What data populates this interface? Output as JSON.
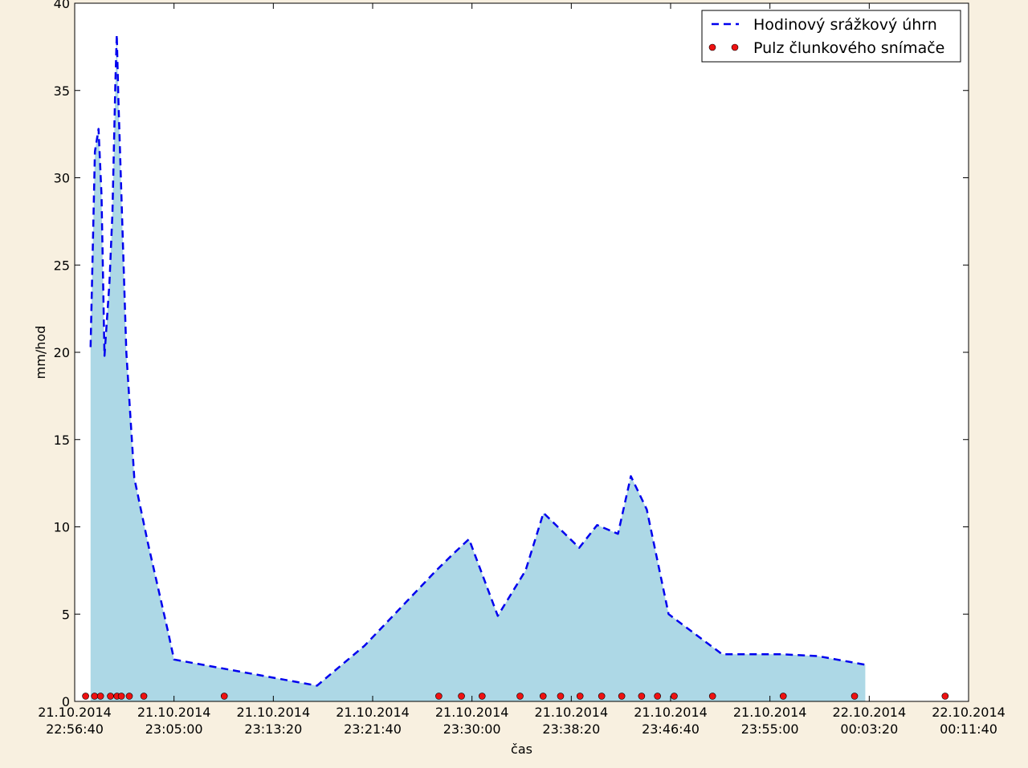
{
  "chart_data": {
    "type": "line",
    "title": "",
    "xlabel": "čas",
    "ylabel": "mm/hod",
    "ylim": [
      0,
      40
    ],
    "yticks": [
      0,
      5,
      10,
      15,
      20,
      25,
      30,
      35,
      40
    ],
    "xlim": [
      "2014-10-21T22:56:40",
      "2014-10-22T00:11:40"
    ],
    "xticks": [
      {
        "value": "2014-10-21T22:56:40",
        "date": "21.10.2014",
        "time": "22:56:40"
      },
      {
        "value": "2014-10-21T23:05:00",
        "date": "21.10.2014",
        "time": "23:05:00"
      },
      {
        "value": "2014-10-21T23:13:20",
        "date": "21.10.2014",
        "time": "23:13:20"
      },
      {
        "value": "2014-10-21T23:21:40",
        "date": "21.10.2014",
        "time": "23:21:40"
      },
      {
        "value": "2014-10-21T23:30:00",
        "date": "21.10.2014",
        "time": "23:30:00"
      },
      {
        "value": "2014-10-21T23:38:20",
        "date": "21.10.2014",
        "time": "23:38:20"
      },
      {
        "value": "2014-10-21T23:46:40",
        "date": "21.10.2014",
        "time": "23:46:40"
      },
      {
        "value": "2014-10-21T23:55:00",
        "date": "21.10.2014",
        "time": "23:55:00"
      },
      {
        "value": "2014-10-22T00:03:20",
        "date": "22.10.2014",
        "time": "00:03:20"
      },
      {
        "value": "2014-10-22T00:11:40",
        "date": "22.10.2014",
        "time": "00:11:40"
      }
    ],
    "grid": false,
    "legend_position": "top-right",
    "series": [
      {
        "name": "Hodinový srážkový úhrn",
        "style": "dashed-line-with-fill",
        "color": "#0000ee",
        "fill_color": "#add8e6",
        "points": [
          {
            "x": "2014-10-21T22:58:00",
            "y": 20.3
          },
          {
            "x": "2014-10-21T22:58:22",
            "y": 31.5
          },
          {
            "x": "2014-10-21T22:58:40",
            "y": 32.8
          },
          {
            "x": "2014-10-21T22:58:55",
            "y": 29.0
          },
          {
            "x": "2014-10-21T22:59:10",
            "y": 19.8
          },
          {
            "x": "2014-10-21T22:59:35",
            "y": 24.0
          },
          {
            "x": "2014-10-21T22:59:50",
            "y": 28.0
          },
          {
            "x": "2014-10-21T23:00:05",
            "y": 35.5
          },
          {
            "x": "2014-10-21T23:00:12",
            "y": 38.2
          },
          {
            "x": "2014-10-21T23:00:20",
            "y": 34.5
          },
          {
            "x": "2014-10-21T23:01:00",
            "y": 20.0
          },
          {
            "x": "2014-10-21T23:01:40",
            "y": 12.8
          },
          {
            "x": "2014-10-21T23:02:50",
            "y": 9.0
          },
          {
            "x": "2014-10-21T23:04:30",
            "y": 4.0
          },
          {
            "x": "2014-10-21T23:05:00",
            "y": 2.4
          },
          {
            "x": "2014-10-21T23:09:00",
            "y": 1.9
          },
          {
            "x": "2014-10-21T23:17:00",
            "y": 0.9
          },
          {
            "x": "2014-10-21T23:21:00",
            "y": 3.2
          },
          {
            "x": "2014-10-21T23:27:00",
            "y": 7.5
          },
          {
            "x": "2014-10-21T23:28:30",
            "y": 8.5
          },
          {
            "x": "2014-10-21T23:29:45",
            "y": 9.3
          },
          {
            "x": "2014-10-21T23:32:10",
            "y": 4.9
          },
          {
            "x": "2014-10-21T23:34:30",
            "y": 7.5
          },
          {
            "x": "2014-10-21T23:36:00",
            "y": 10.8
          },
          {
            "x": "2014-10-21T23:39:00",
            "y": 8.8
          },
          {
            "x": "2014-10-21T23:40:30",
            "y": 10.1
          },
          {
            "x": "2014-10-21T23:42:15",
            "y": 9.6
          },
          {
            "x": "2014-10-21T23:43:20",
            "y": 12.9
          },
          {
            "x": "2014-10-21T23:44:40",
            "y": 11.0
          },
          {
            "x": "2014-10-21T23:46:30",
            "y": 5.0
          },
          {
            "x": "2014-10-21T23:51:00",
            "y": 2.7
          },
          {
            "x": "2014-10-21T23:56:00",
            "y": 2.7
          },
          {
            "x": "2014-10-21T23:59:00",
            "y": 2.6
          },
          {
            "x": "2014-10-22T00:03:00",
            "y": 2.1
          }
        ]
      },
      {
        "name": "Pulz člunkového snímače",
        "style": "markers",
        "color": "#ee1111",
        "points": [
          {
            "x": "2014-10-21T22:57:35",
            "y": 0.3
          },
          {
            "x": "2014-10-21T22:58:20",
            "y": 0.3
          },
          {
            "x": "2014-10-21T22:58:50",
            "y": 0.3
          },
          {
            "x": "2014-10-21T22:59:40",
            "y": 0.3
          },
          {
            "x": "2014-10-21T23:00:13",
            "y": 0.3
          },
          {
            "x": "2014-10-21T23:00:35",
            "y": 0.3
          },
          {
            "x": "2014-10-21T23:01:15",
            "y": 0.3
          },
          {
            "x": "2014-10-21T23:02:28",
            "y": 0.3
          },
          {
            "x": "2014-10-21T23:09:13",
            "y": 0.3
          },
          {
            "x": "2014-10-21T23:27:13",
            "y": 0.3
          },
          {
            "x": "2014-10-21T23:29:07",
            "y": 0.3
          },
          {
            "x": "2014-10-21T23:30:51",
            "y": 0.3
          },
          {
            "x": "2014-10-21T23:34:02",
            "y": 0.3
          },
          {
            "x": "2014-10-21T23:35:58",
            "y": 0.3
          },
          {
            "x": "2014-10-21T23:37:26",
            "y": 0.3
          },
          {
            "x": "2014-10-21T23:39:04",
            "y": 0.3
          },
          {
            "x": "2014-10-21T23:40:53",
            "y": 0.3
          },
          {
            "x": "2014-10-21T23:42:34",
            "y": 0.3
          },
          {
            "x": "2014-10-21T23:44:14",
            "y": 0.3
          },
          {
            "x": "2014-10-21T23:45:34",
            "y": 0.3
          },
          {
            "x": "2014-10-21T23:46:58",
            "y": 0.3
          },
          {
            "x": "2014-10-21T23:50:11",
            "y": 0.3
          },
          {
            "x": "2014-10-21T23:56:07",
            "y": 0.3
          },
          {
            "x": "2014-10-22T00:02:06",
            "y": 0.3
          },
          {
            "x": "2014-10-22T00:09:42",
            "y": 0.3
          }
        ]
      }
    ]
  }
}
